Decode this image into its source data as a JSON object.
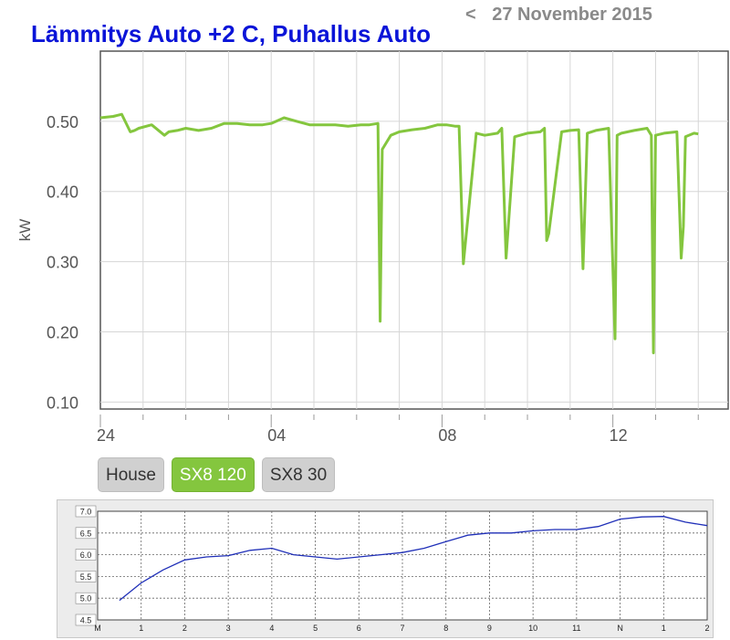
{
  "header": {
    "title": "Lämmitys Auto +2 C, Puhallus Auto",
    "prev_arrow": "<",
    "date": "27 November 2015"
  },
  "buttons": [
    {
      "label": "House",
      "active": false
    },
    {
      "label": "SX8 120",
      "active": true
    },
    {
      "label": "SX8 30",
      "active": false
    }
  ],
  "colors": {
    "title": "#0a14d8",
    "line": "#84c63e",
    "button_active": "#84c63e",
    "mini_line": "#1f2fb8"
  },
  "chart_data": [
    {
      "type": "line",
      "ylabel": "kW",
      "xlabel": "",
      "ylim": [
        0.09,
        0.6
      ],
      "yticks": [
        0.1,
        0.2,
        0.3,
        0.4,
        0.5
      ],
      "ytick_labels": [
        "0.10",
        "0.20",
        "0.30",
        "0.40",
        "0.50"
      ],
      "xlim": [
        0,
        14.7
      ],
      "xticks": [
        0,
        4,
        8,
        12
      ],
      "xtick_labels": [
        "24",
        "04",
        "08",
        "12"
      ],
      "grid": true,
      "series": [
        {
          "x": [
            0.0,
            0.3,
            0.5,
            0.7,
            0.8,
            0.9,
            1.2,
            1.5,
            1.6,
            1.8,
            2.0,
            2.3,
            2.6,
            2.9,
            3.2,
            3.5,
            3.8,
            4.0,
            4.3,
            4.6,
            4.9,
            5.2,
            5.5,
            5.8,
            6.1,
            6.3,
            6.5,
            6.55,
            6.6,
            6.8,
            7.0,
            7.3,
            7.6,
            7.9,
            8.1,
            8.3,
            8.4,
            8.5,
            8.8,
            9.0,
            9.3,
            9.4,
            9.5,
            9.7,
            10.0,
            10.3,
            10.4,
            10.45,
            10.5,
            10.8,
            11.0,
            11.2,
            11.3,
            11.4,
            11.6,
            11.9,
            12.05,
            12.1,
            12.2,
            12.5,
            12.8,
            12.9,
            12.95,
            13.0,
            13.2,
            13.5,
            13.6,
            13.65,
            13.7,
            13.9,
            14.0
          ],
          "y": [
            0.505,
            0.507,
            0.51,
            0.485,
            0.487,
            0.49,
            0.495,
            0.48,
            0.485,
            0.487,
            0.49,
            0.487,
            0.49,
            0.497,
            0.497,
            0.495,
            0.495,
            0.497,
            0.505,
            0.5,
            0.495,
            0.495,
            0.495,
            0.493,
            0.495,
            0.495,
            0.497,
            0.215,
            0.46,
            0.48,
            0.485,
            0.488,
            0.49,
            0.495,
            0.495,
            0.493,
            0.493,
            0.297,
            0.483,
            0.48,
            0.483,
            0.49,
            0.305,
            0.478,
            0.483,
            0.485,
            0.49,
            0.33,
            0.34,
            0.485,
            0.487,
            0.488,
            0.29,
            0.483,
            0.487,
            0.49,
            0.19,
            0.48,
            0.483,
            0.487,
            0.49,
            0.48,
            0.17,
            0.48,
            0.483,
            0.485,
            0.305,
            0.35,
            0.478,
            0.483,
            0.482
          ]
        }
      ]
    },
    {
      "type": "line",
      "xlabel": "",
      "ylabel": "",
      "ylim": [
        4.5,
        7.0
      ],
      "yticks": [
        4.5,
        5.0,
        5.5,
        6.0,
        6.5,
        7.0
      ],
      "ytick_labels": [
        "4.5",
        "5.0",
        "5.5",
        "6.0",
        "6.5",
        "7.0"
      ],
      "xlim": [
        0,
        14
      ],
      "xticks": [
        0,
        1,
        2,
        3,
        4,
        5,
        6,
        7,
        8,
        9,
        10,
        11,
        12,
        13,
        14
      ],
      "xtick_labels": [
        "M",
        "1",
        "2",
        "3",
        "4",
        "5",
        "6",
        "7",
        "8",
        "9",
        "10",
        "11",
        "N",
        "1",
        "2"
      ],
      "grid": true,
      "series": [
        {
          "x": [
            0.5,
            1.0,
            1.5,
            2.0,
            2.5,
            3.0,
            3.5,
            4.0,
            4.5,
            5.0,
            5.5,
            6.0,
            6.5,
            7.0,
            7.5,
            8.0,
            8.5,
            9.0,
            9.5,
            10.0,
            10.5,
            11.0,
            11.5,
            12.0,
            12.5,
            13.0,
            13.5,
            14.0
          ],
          "y": [
            4.95,
            5.35,
            5.65,
            5.88,
            5.95,
            5.98,
            6.1,
            6.15,
            6.0,
            5.95,
            5.9,
            5.95,
            6.0,
            6.05,
            6.15,
            6.3,
            6.45,
            6.5,
            6.5,
            6.55,
            6.58,
            6.58,
            6.65,
            6.82,
            6.87,
            6.88,
            6.75,
            6.67
          ]
        }
      ]
    }
  ]
}
